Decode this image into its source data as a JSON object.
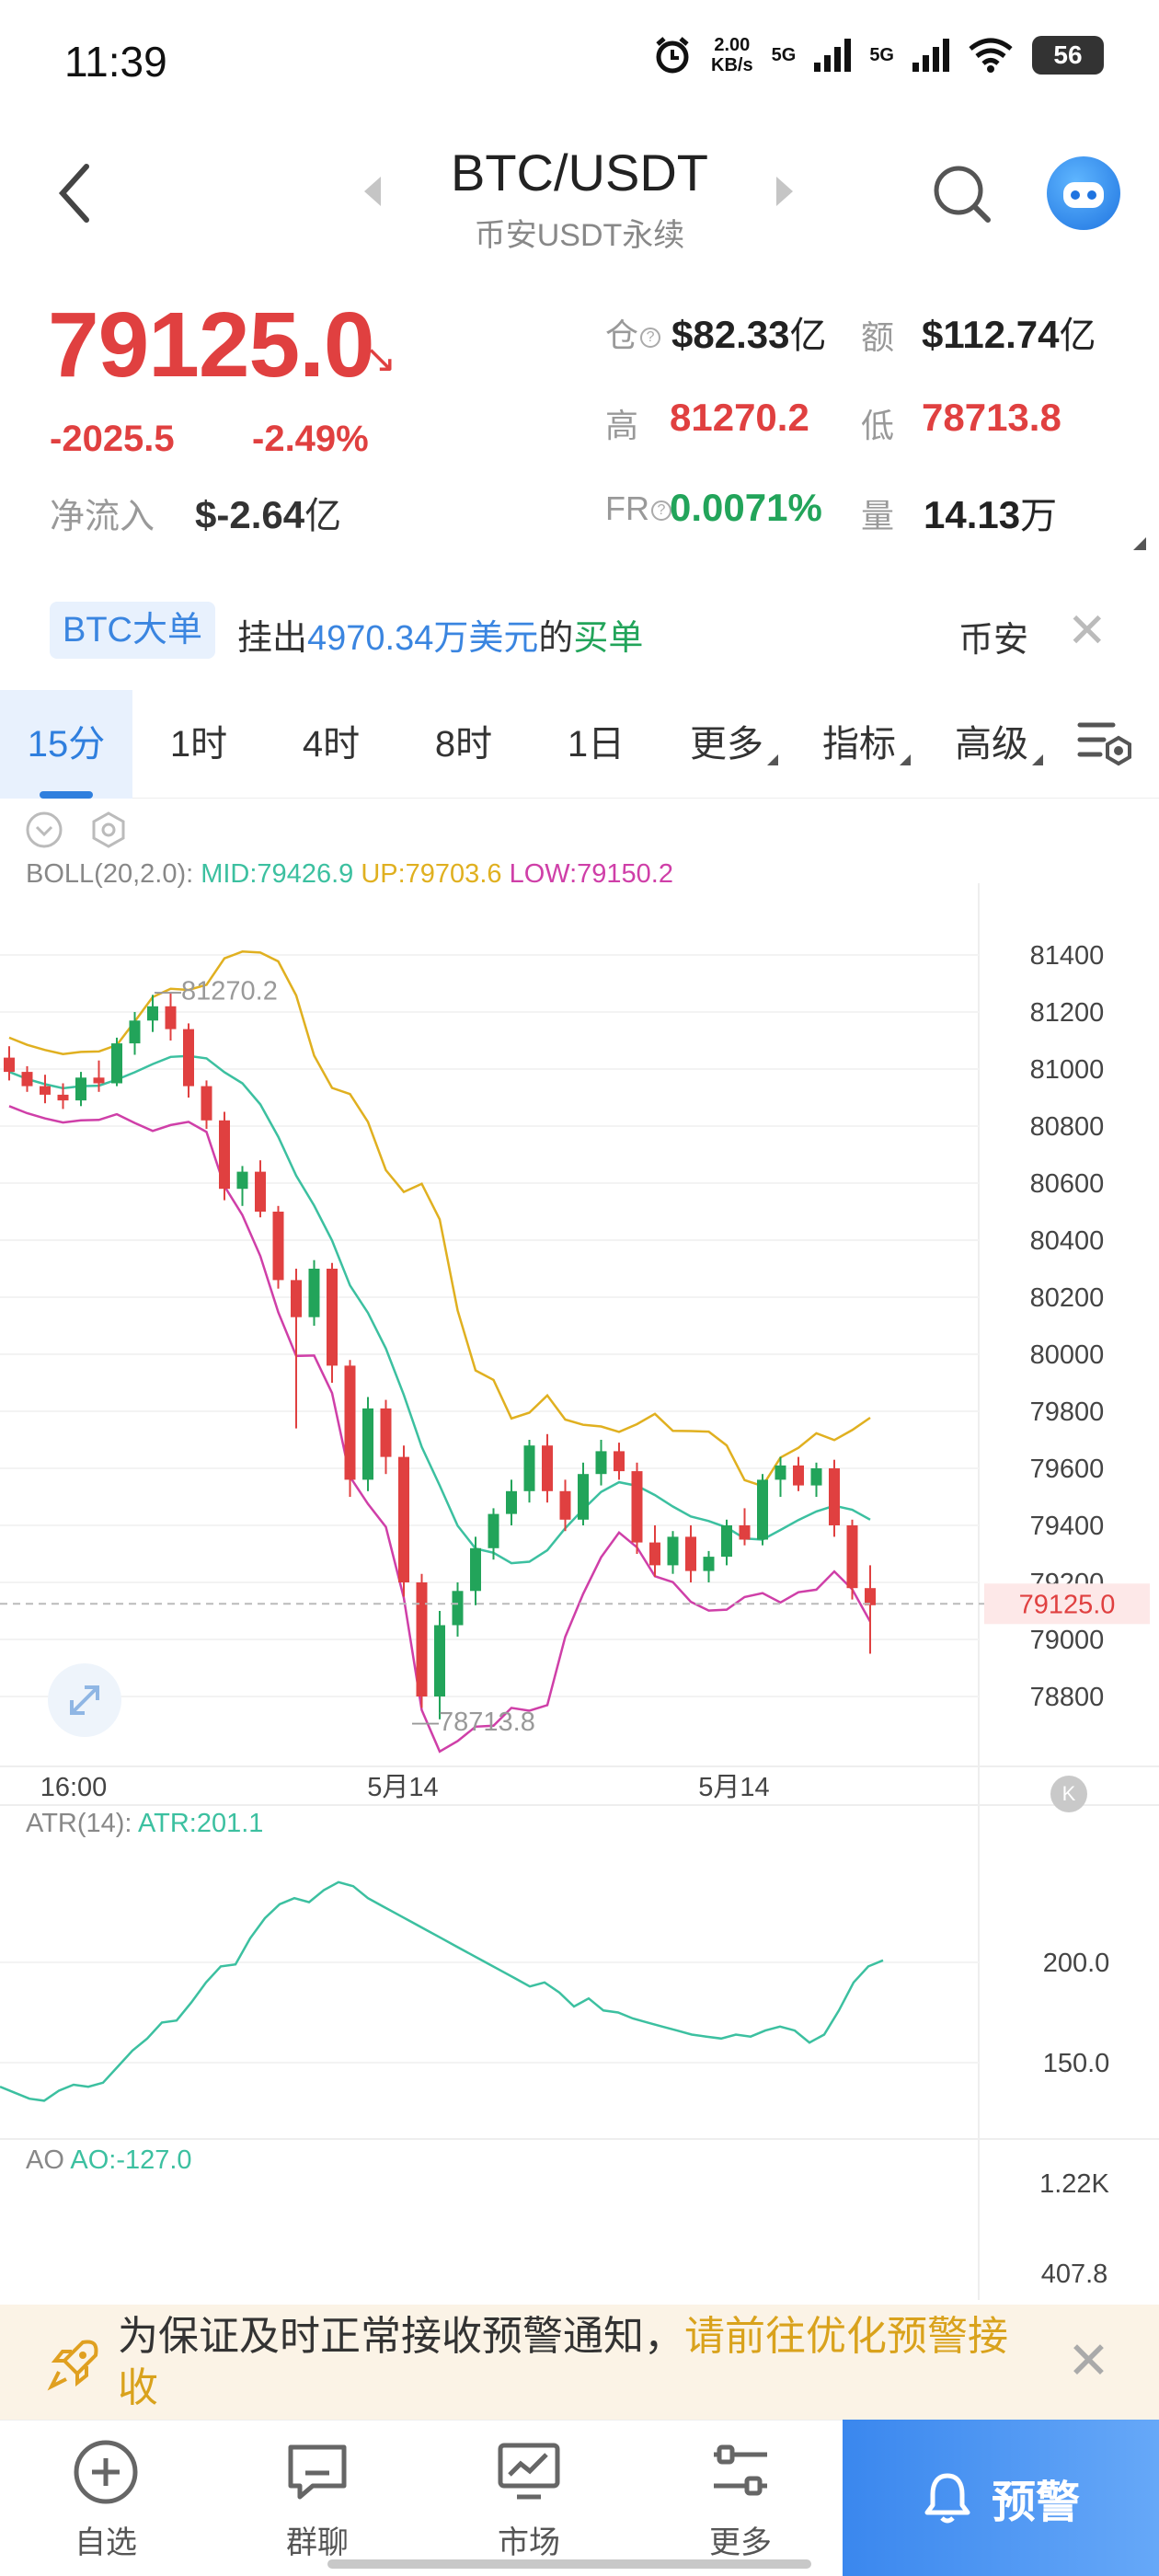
{
  "status_bar": {
    "time": "11:39",
    "net_speed_value": "2.00",
    "net_speed_unit": "KB/s",
    "signal1": "5G",
    "signal2": "5G",
    "battery": "56"
  },
  "header": {
    "title": "BTC/USDT",
    "subtitle": "币安USDT永续"
  },
  "ticker": {
    "price": "79125.0",
    "change_abs": "-2025.5",
    "change_pct": "-2.49%",
    "netflow_label": "净流入",
    "netflow_value": "$-2.64",
    "netflow_unit": "亿",
    "oi_label": "仓",
    "oi_value": "$82.33",
    "oi_unit": "亿",
    "volume_usd_label": "额",
    "volume_usd_value": "$112.74",
    "volume_usd_unit": "亿",
    "high_label": "高",
    "high_value": "81270.2",
    "low_label": "低",
    "low_value": "78713.8",
    "fr_label": "FR",
    "fr_value": "0.0071%",
    "qty_label": "量",
    "qty_value": "14.13",
    "qty_unit": "万"
  },
  "whale": {
    "tag": "BTC大单",
    "prefix": "挂出",
    "amount": "4970.34万美元",
    "middle": "的",
    "side": "买单",
    "source": "币安"
  },
  "timeframes": {
    "t1": "15分",
    "t2": "1时",
    "t3": "4时",
    "t4": "8时",
    "t5": "1日",
    "more": "更多",
    "indicators": "指标",
    "advanced": "高级"
  },
  "colors": {
    "up": "#22a45a",
    "down": "#e04040",
    "boll_mid": "#3cc0a0",
    "boll_up": "#e0b020",
    "boll_low": "#cf3fa8",
    "accent": "#2f7fde"
  },
  "chart_data": {
    "type": "candlestick",
    "boll_legend": {
      "label": "BOLL(20,2.0):",
      "mid": "MID:79426.9",
      "up": "UP:79703.6",
      "low": "LOW:79150.2"
    },
    "price_ticks": [
      "81400",
      "81200",
      "81000",
      "80800",
      "80600",
      "80400",
      "80200",
      "80000",
      "79800",
      "79600",
      "79400",
      "79200",
      "79000",
      "78800"
    ],
    "current_price_tag": "79125.0",
    "high_mark": "81270.2",
    "low_mark": "78713.8",
    "time_labels": [
      "16:00",
      "5月14",
      "5月14"
    ],
    "atr_legend": {
      "label": "ATR(14):",
      "value": "ATR:201.1"
    },
    "atr_ticks": [
      "200.0",
      "150.0"
    ],
    "ao_legend": {
      "label": "AO",
      "value": "AO:-127.0"
    },
    "ao_ticks": [
      "1.22K",
      "407.8"
    ],
    "candles_ohlc": [
      [
        81040,
        81080,
        80960,
        80990
      ],
      [
        80990,
        81010,
        80920,
        80940
      ],
      [
        80940,
        80980,
        80880,
        80910
      ],
      [
        80910,
        80950,
        80860,
        80890
      ],
      [
        80890,
        80990,
        80870,
        80970
      ],
      [
        80970,
        81030,
        80920,
        80950
      ],
      [
        80950,
        81110,
        80940,
        81090
      ],
      [
        81090,
        81200,
        81050,
        81170
      ],
      [
        81170,
        81260,
        81130,
        81220
      ],
      [
        81220,
        81270,
        81100,
        81140
      ],
      [
        81140,
        81160,
        80900,
        80940
      ],
      [
        80940,
        80960,
        80790,
        80820
      ],
      [
        80820,
        80850,
        80540,
        80580
      ],
      [
        80580,
        80660,
        80520,
        80640
      ],
      [
        80640,
        80680,
        80480,
        80500
      ],
      [
        80500,
        80520,
        80230,
        80260
      ],
      [
        80260,
        80300,
        79740,
        80130
      ],
      [
        80130,
        80330,
        80100,
        80300
      ],
      [
        80300,
        80320,
        79900,
        79960
      ],
      [
        79960,
        79980,
        79500,
        79560
      ],
      [
        79560,
        79850,
        79520,
        79810
      ],
      [
        79810,
        79840,
        79580,
        79640
      ],
      [
        79640,
        79680,
        79150,
        79200
      ],
      [
        79200,
        79230,
        78760,
        78800
      ],
      [
        78800,
        79100,
        78720,
        79050
      ],
      [
        79050,
        79200,
        79010,
        79170
      ],
      [
        79170,
        79360,
        79120,
        79320
      ],
      [
        79320,
        79460,
        79280,
        79440
      ],
      [
        79440,
        79560,
        79400,
        79520
      ],
      [
        79520,
        79700,
        79480,
        79680
      ],
      [
        79680,
        79720,
        79480,
        79520
      ],
      [
        79520,
        79560,
        79380,
        79420
      ],
      [
        79420,
        79620,
        79400,
        79580
      ],
      [
        79580,
        79700,
        79540,
        79660
      ],
      [
        79660,
        79690,
        79560,
        79590
      ],
      [
        79590,
        79620,
        79300,
        79340
      ],
      [
        79340,
        79400,
        79220,
        79260
      ],
      [
        79260,
        79380,
        79230,
        79360
      ],
      [
        79360,
        79400,
        79200,
        79240
      ],
      [
        79240,
        79310,
        79200,
        79290
      ],
      [
        79290,
        79420,
        79260,
        79400
      ],
      [
        79400,
        79460,
        79330,
        79350
      ],
      [
        79350,
        79580,
        79330,
        79560
      ],
      [
        79560,
        79640,
        79500,
        79610
      ],
      [
        79610,
        79640,
        79520,
        79540
      ],
      [
        79540,
        79620,
        79500,
        79600
      ],
      [
        79600,
        79630,
        79360,
        79400
      ],
      [
        79400,
        79420,
        79140,
        79180
      ],
      [
        79180,
        79260,
        78950,
        79120
      ]
    ]
  },
  "alert_banner": {
    "text": "为保证及时正常接收预警通知，",
    "link": "请前往优化预警接收"
  },
  "bottom_nav": {
    "watchlist": "自选",
    "chat": "群聊",
    "market": "市场",
    "more": "更多",
    "alert": "预警"
  }
}
